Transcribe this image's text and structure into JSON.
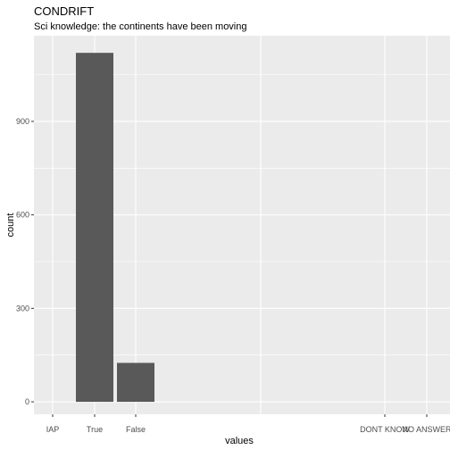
{
  "chart_data": {
    "type": "bar",
    "title": "CONDRIFT",
    "subtitle": "Sci knowledge: the continents have been moving",
    "xlabel": "values",
    "ylabel": "count",
    "categories": [
      "IAP",
      "True",
      "False",
      "DONT KNOW",
      "NO ANSWER"
    ],
    "values": [
      0,
      1120,
      125,
      0,
      0
    ],
    "yticks": [
      0,
      300,
      600,
      900
    ],
    "ylim": [
      -40,
      1175
    ],
    "grid": true,
    "legend": "none",
    "colors": {
      "bar": "#595959",
      "panel": "#ebebeb",
      "grid_major": "#ffffff",
      "text": "#000000",
      "tick_text": "#4d4d4d",
      "tick_mark": "#333333"
    }
  }
}
